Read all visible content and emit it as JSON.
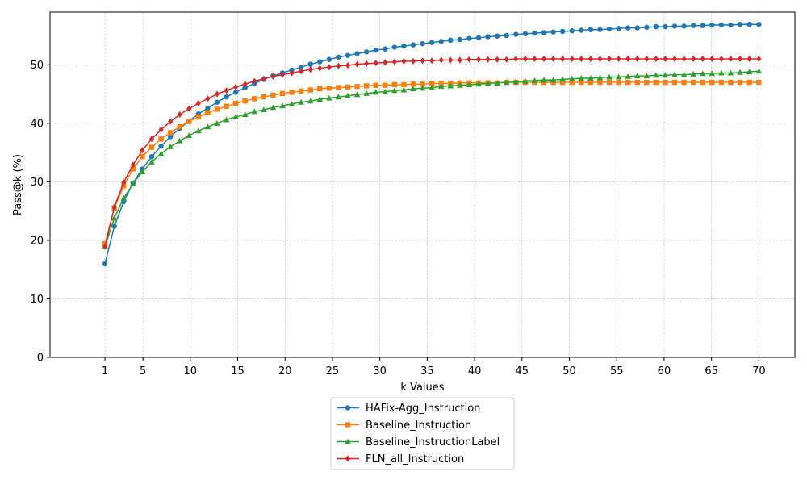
{
  "chart_data": {
    "type": "line",
    "title": "",
    "xlabel": "k Values",
    "ylabel": "Pass@k (%)",
    "xlim": [
      -4.8,
      73.8
    ],
    "ylim": [
      0,
      59
    ],
    "xticks": [
      1,
      5,
      10,
      15,
      20,
      25,
      30,
      35,
      40,
      45,
      50,
      55,
      60,
      65,
      70
    ],
    "yticks": [
      0,
      10,
      20,
      30,
      40,
      50
    ],
    "grid": true,
    "legend_position": "bottom-center-outside",
    "x": [
      1,
      1.985,
      2.971,
      3.956,
      4.942,
      5.927,
      6.913,
      7.898,
      8.884,
      9.869,
      10.855,
      11.84,
      12.826,
      13.811,
      14.797,
      15.782,
      16.768,
      17.753,
      18.739,
      19.724,
      20.71,
      21.695,
      22.681,
      23.666,
      24.652,
      25.637,
      26.623,
      27.608,
      28.594,
      29.579,
      30.565,
      31.55,
      32.536,
      33.521,
      34.507,
      35.492,
      36.478,
      37.463,
      38.449,
      39.434,
      40.42,
      41.405,
      42.391,
      43.376,
      44.362,
      45.347,
      46.333,
      47.318,
      48.304,
      49.289,
      50.275,
      51.26,
      52.246,
      53.231,
      54.217,
      55.202,
      56.188,
      57.173,
      58.159,
      59.144,
      60.13,
      61.115,
      62.101,
      63.086,
      64.072,
      65.057,
      66.043,
      67.028,
      68.014,
      69.0,
      70.0
    ],
    "series": [
      {
        "name": "HAFix-Agg_Instruction",
        "color": "#1f77b4",
        "marker": "circle",
        "values": [
          16.0,
          22.4,
          26.6,
          29.8,
          32.2,
          34.3,
          36.1,
          37.7,
          39.1,
          40.4,
          41.6,
          42.6,
          43.6,
          44.5,
          45.3,
          46.1,
          46.8,
          47.5,
          48.1,
          48.6,
          49.1,
          49.6,
          50.1,
          50.5,
          50.9,
          51.3,
          51.6,
          51.9,
          52.2,
          52.5,
          52.7,
          53.0,
          53.2,
          53.4,
          53.6,
          53.8,
          54.0,
          54.2,
          54.3,
          54.5,
          54.6,
          54.8,
          54.9,
          55.0,
          55.2,
          55.3,
          55.4,
          55.5,
          55.6,
          55.7,
          55.8,
          55.9,
          56.0,
          56.0,
          56.1,
          56.2,
          56.3,
          56.3,
          56.4,
          56.5,
          56.5,
          56.6,
          56.6,
          56.7,
          56.7,
          56.8,
          56.8,
          56.8,
          56.9,
          56.9,
          56.9
        ]
      },
      {
        "name": "Baseline_Instruction",
        "color": "#ff7f0e",
        "marker": "square",
        "values": [
          19.4,
          25.5,
          29.3,
          32.2,
          34.3,
          35.9,
          37.3,
          38.4,
          39.4,
          40.3,
          41.1,
          41.8,
          42.4,
          42.9,
          43.4,
          43.8,
          44.2,
          44.5,
          44.8,
          45.1,
          45.3,
          45.5,
          45.7,
          45.9,
          46.0,
          46.1,
          46.2,
          46.3,
          46.4,
          46.5,
          46.5,
          46.6,
          46.6,
          46.7,
          46.7,
          46.8,
          46.8,
          46.8,
          46.9,
          46.9,
          46.9,
          46.9,
          46.9,
          47.0,
          47.0,
          47.0,
          47.0,
          47.0,
          47.0,
          47.0,
          47.0,
          47.0,
          47.0,
          47.0,
          47.0,
          47.0,
          47.0,
          47.0,
          47.0,
          47.0,
          47.0,
          47.0,
          47.0,
          47.0,
          47.0,
          47.0,
          47.0,
          47.0,
          47.0,
          47.0,
          47.0
        ]
      },
      {
        "name": "Baseline_InstructionLabel",
        "color": "#2ca02c",
        "marker": "triangle",
        "values": [
          18.9,
          23.8,
          27.2,
          29.7,
          31.7,
          33.4,
          34.8,
          36.0,
          37.0,
          37.9,
          38.7,
          39.4,
          40.0,
          40.6,
          41.1,
          41.5,
          42.0,
          42.3,
          42.7,
          43.0,
          43.3,
          43.6,
          43.8,
          44.1,
          44.3,
          44.5,
          44.7,
          44.9,
          45.1,
          45.3,
          45.4,
          45.6,
          45.7,
          45.9,
          46.0,
          46.1,
          46.3,
          46.4,
          46.5,
          46.6,
          46.7,
          46.8,
          46.9,
          47.0,
          47.1,
          47.2,
          47.3,
          47.4,
          47.4,
          47.5,
          47.6,
          47.7,
          47.7,
          47.8,
          47.9,
          47.9,
          48.0,
          48.1,
          48.1,
          48.2,
          48.2,
          48.3,
          48.3,
          48.4,
          48.5,
          48.5,
          48.6,
          48.6,
          48.7,
          48.8,
          48.9
        ]
      },
      {
        "name": "FLN_all_Instruction",
        "color": "#d62728",
        "marker": "diamond",
        "values": [
          18.9,
          25.7,
          29.9,
          32.9,
          35.4,
          37.3,
          38.9,
          40.3,
          41.5,
          42.5,
          43.4,
          44.2,
          45.0,
          45.6,
          46.2,
          46.7,
          47.2,
          47.6,
          48.0,
          48.3,
          48.6,
          48.9,
          49.2,
          49.4,
          49.6,
          49.8,
          49.9,
          50.1,
          50.2,
          50.3,
          50.4,
          50.5,
          50.6,
          50.6,
          50.7,
          50.7,
          50.8,
          50.8,
          50.8,
          50.9,
          50.9,
          50.9,
          50.9,
          50.9,
          51.0,
          51.0,
          51.0,
          51.0,
          51.0,
          51.0,
          51.0,
          51.0,
          51.0,
          51.0,
          51.0,
          51.0,
          51.0,
          51.0,
          51.0,
          51.0,
          51.0,
          51.0,
          51.0,
          51.0,
          51.0,
          51.0,
          51.0,
          51.0,
          51.0,
          51.0,
          51.0
        ]
      }
    ]
  }
}
